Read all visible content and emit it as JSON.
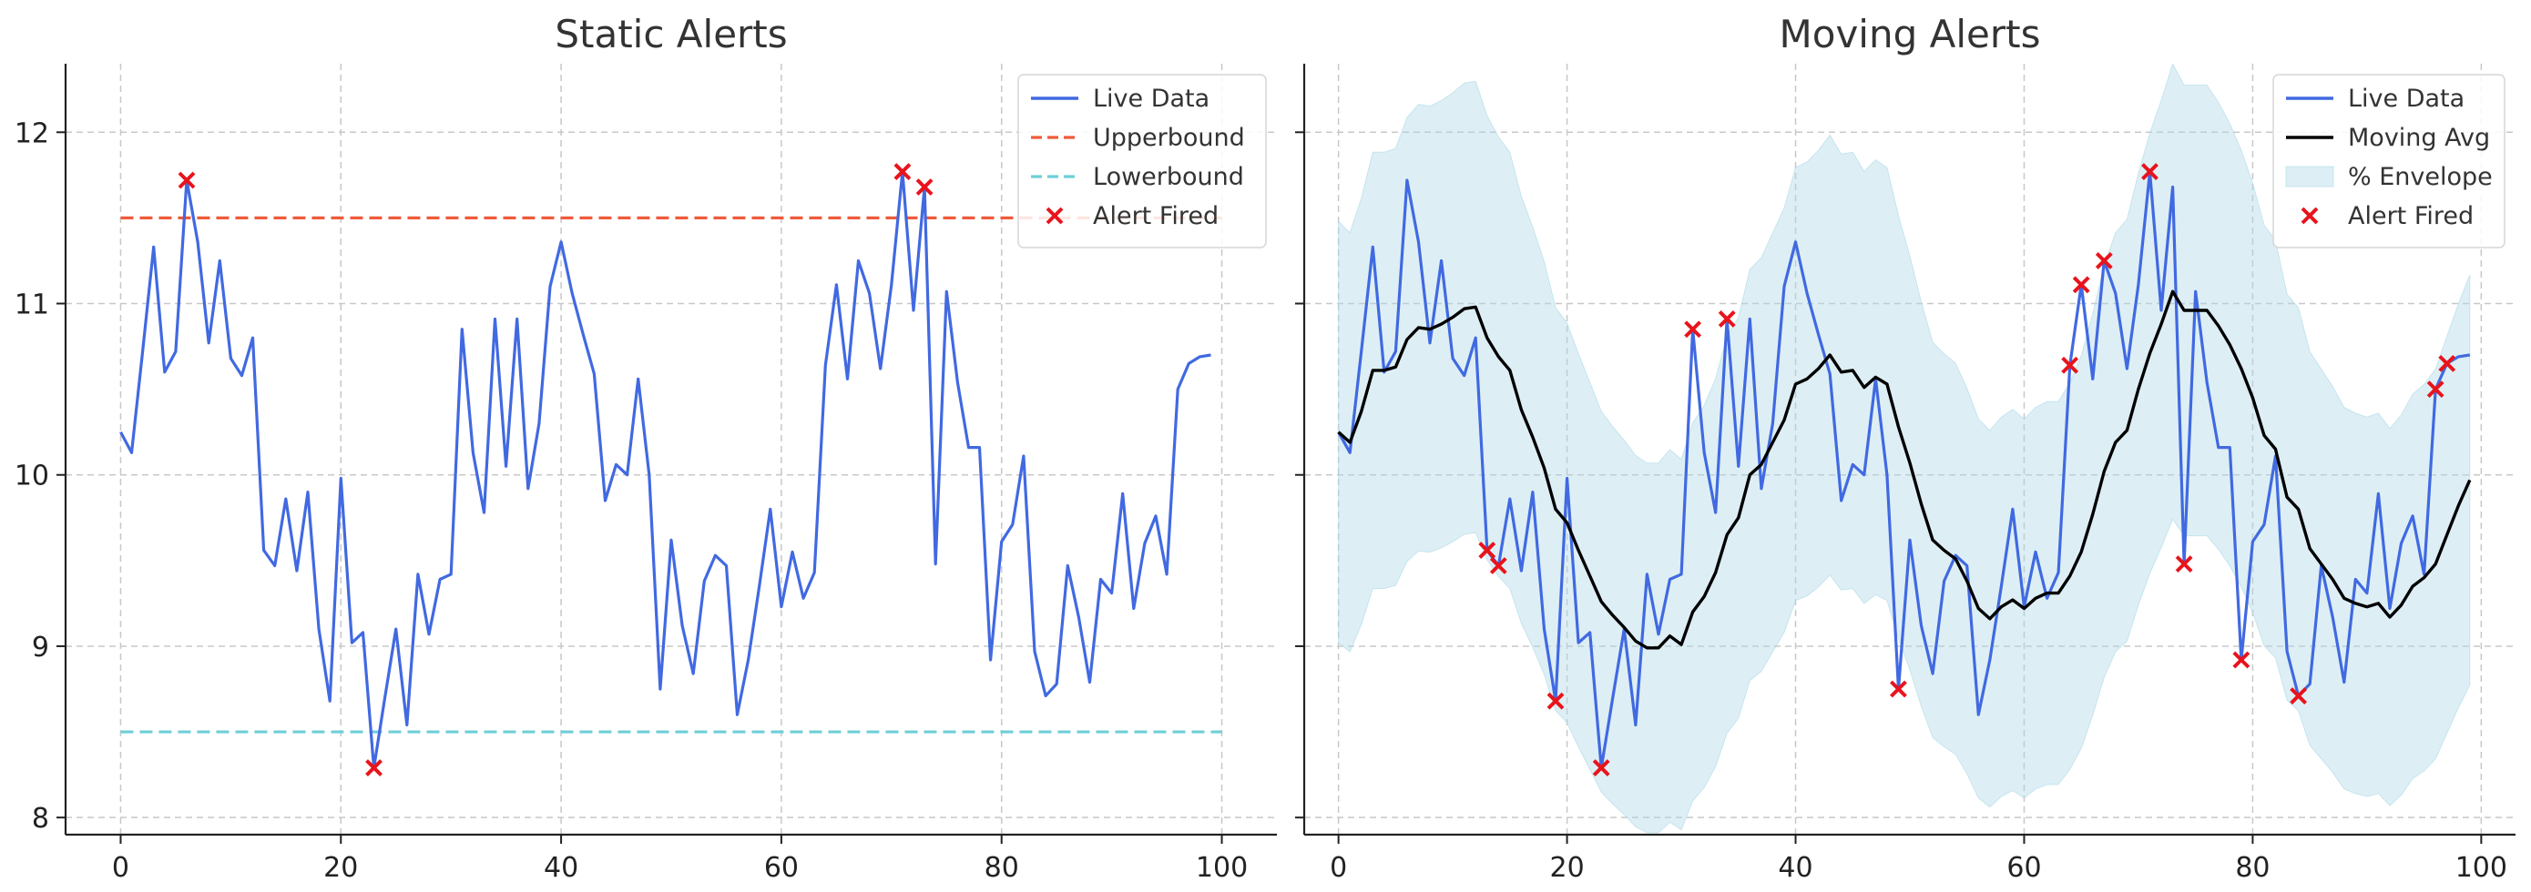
{
  "chart_data": [
    {
      "type": "line",
      "title": "Static Alerts",
      "xlabel": "",
      "ylabel": "",
      "xlim": [
        -5,
        105
      ],
      "ylim": [
        7.9,
        12.4
      ],
      "xticks": [
        0,
        20,
        40,
        60,
        80,
        100
      ],
      "yticks": [
        8,
        9,
        10,
        11,
        12
      ],
      "grid": true,
      "legend_position": "top-right",
      "series": [
        {
          "name": "Live Data",
          "kind": "line",
          "color": "#4169e1",
          "x": [
            0,
            1,
            2,
            3,
            4,
            5,
            6,
            7,
            8,
            9,
            10,
            11,
            12,
            13,
            14,
            15,
            16,
            17,
            18,
            19,
            20,
            21,
            22,
            23,
            24,
            25,
            26,
            27,
            28,
            29,
            30,
            31,
            32,
            33,
            34,
            35,
            36,
            37,
            38,
            39,
            40,
            41,
            42,
            43,
            44,
            45,
            46,
            47,
            48,
            49,
            50,
            51,
            52,
            53,
            54,
            55,
            56,
            57,
            58,
            59,
            60,
            61,
            62,
            63,
            64,
            65,
            66,
            67,
            68,
            69,
            70,
            71,
            72,
            73,
            74,
            75,
            76,
            77,
            78,
            79,
            80,
            81,
            82,
            83,
            84,
            85,
            86,
            87,
            88,
            89,
            90,
            91,
            92,
            93,
            94,
            95,
            96,
            97,
            98,
            99
          ],
          "values": [
            10.25,
            10.13,
            10.72,
            11.33,
            10.6,
            10.72,
            11.72,
            11.36,
            10.77,
            11.25,
            10.68,
            10.58,
            10.8,
            9.56,
            9.47,
            9.86,
            9.44,
            9.9,
            9.1,
            8.68,
            9.98,
            9.02,
            9.08,
            8.29,
            8.7,
            9.1,
            8.54,
            9.42,
            9.07,
            9.39,
            9.42,
            10.85,
            10.13,
            9.78,
            10.91,
            10.05,
            10.91,
            9.92,
            10.3,
            11.1,
            11.36,
            11.06,
            10.82,
            10.59,
            9.85,
            10.06,
            10.0,
            10.56,
            10.0,
            8.75,
            9.62,
            9.12,
            8.84,
            9.38,
            9.53,
            9.47,
            8.6,
            8.92,
            9.35,
            9.8,
            9.23,
            9.55,
            9.28,
            9.43,
            10.64,
            11.11,
            10.56,
            11.25,
            11.06,
            10.62,
            11.11,
            11.77,
            10.96,
            11.68,
            9.48,
            11.07,
            10.54,
            10.16,
            10.16,
            8.92,
            9.61,
            9.71,
            10.11,
            8.97,
            8.71,
            8.78,
            9.47,
            9.17,
            8.79,
            9.39,
            9.31,
            9.89,
            9.22,
            9.6,
            9.76,
            9.42,
            10.5,
            10.65,
            10.69,
            10.7
          ]
        },
        {
          "name": "Upperbound",
          "kind": "hline",
          "color": "#f05a3a",
          "value": 11.5,
          "x_range": [
            0,
            100
          ]
        },
        {
          "name": "Lowerbound",
          "kind": "hline",
          "color": "#6fcfd8",
          "value": 8.5,
          "x_range": [
            0,
            100
          ]
        },
        {
          "name": "Alert Fired",
          "kind": "scatter",
          "color": "#e8141c",
          "x": [
            6,
            23,
            71,
            73
          ],
          "values": [
            11.72,
            8.29,
            11.77,
            11.68
          ]
        }
      ]
    },
    {
      "type": "line",
      "title": "Moving Alerts",
      "xlabel": "",
      "ylabel": "",
      "xlim": [
        -3,
        103
      ],
      "ylim": [
        7.9,
        12.4
      ],
      "xticks": [
        0,
        20,
        40,
        60,
        80,
        100
      ],
      "yticks": [
        8,
        9,
        10,
        11,
        12
      ],
      "grid": true,
      "legend_position": "top-right",
      "series": [
        {
          "name": "Live Data",
          "kind": "line",
          "color": "#4169e1",
          "x": [
            0,
            1,
            2,
            3,
            4,
            5,
            6,
            7,
            8,
            9,
            10,
            11,
            12,
            13,
            14,
            15,
            16,
            17,
            18,
            19,
            20,
            21,
            22,
            23,
            24,
            25,
            26,
            27,
            28,
            29,
            30,
            31,
            32,
            33,
            34,
            35,
            36,
            37,
            38,
            39,
            40,
            41,
            42,
            43,
            44,
            45,
            46,
            47,
            48,
            49,
            50,
            51,
            52,
            53,
            54,
            55,
            56,
            57,
            58,
            59,
            60,
            61,
            62,
            63,
            64,
            65,
            66,
            67,
            68,
            69,
            70,
            71,
            72,
            73,
            74,
            75,
            76,
            77,
            78,
            79,
            80,
            81,
            82,
            83,
            84,
            85,
            86,
            87,
            88,
            89,
            90,
            91,
            92,
            93,
            94,
            95,
            96,
            97,
            98,
            99
          ],
          "values": [
            10.25,
            10.13,
            10.72,
            11.33,
            10.6,
            10.72,
            11.72,
            11.36,
            10.77,
            11.25,
            10.68,
            10.58,
            10.8,
            9.56,
            9.47,
            9.86,
            9.44,
            9.9,
            9.1,
            8.68,
            9.98,
            9.02,
            9.08,
            8.29,
            8.7,
            9.1,
            8.54,
            9.42,
            9.07,
            9.39,
            9.42,
            10.85,
            10.13,
            9.78,
            10.91,
            10.05,
            10.91,
            9.92,
            10.3,
            11.1,
            11.36,
            11.06,
            10.82,
            10.59,
            9.85,
            10.06,
            10.0,
            10.56,
            10.0,
            8.75,
            9.62,
            9.12,
            8.84,
            9.38,
            9.53,
            9.47,
            8.6,
            8.92,
            9.35,
            9.8,
            9.23,
            9.55,
            9.28,
            9.43,
            10.64,
            11.11,
            10.56,
            11.25,
            11.06,
            10.62,
            11.11,
            11.77,
            10.96,
            11.68,
            9.48,
            11.07,
            10.54,
            10.16,
            10.16,
            8.92,
            9.61,
            9.71,
            10.11,
            8.97,
            8.71,
            8.78,
            9.47,
            9.17,
            8.79,
            9.39,
            9.31,
            9.89,
            9.22,
            9.6,
            9.76,
            9.42,
            10.5,
            10.65,
            10.69,
            10.7
          ]
        },
        {
          "name": "Moving Avg",
          "kind": "line",
          "color": "#000000",
          "x": [
            0,
            1,
            2,
            3,
            4,
            5,
            6,
            7,
            8,
            9,
            10,
            11,
            12,
            13,
            14,
            15,
            16,
            17,
            18,
            19,
            20,
            21,
            22,
            23,
            24,
            25,
            26,
            27,
            28,
            29,
            30,
            31,
            32,
            33,
            34,
            35,
            36,
            37,
            38,
            39,
            40,
            41,
            42,
            43,
            44,
            45,
            46,
            47,
            48,
            49,
            50,
            51,
            52,
            53,
            54,
            55,
            56,
            57,
            58,
            59,
            60,
            61,
            62,
            63,
            64,
            65,
            66,
            67,
            68,
            69,
            70,
            71,
            72,
            73,
            74,
            75,
            76,
            77,
            78,
            79,
            80,
            81,
            82,
            83,
            84,
            85,
            86,
            87,
            88,
            89,
            90,
            91,
            92,
            93,
            94,
            95,
            96,
            97,
            98,
            99
          ],
          "values": [
            10.25,
            10.19,
            10.37,
            10.61,
            10.61,
            10.63,
            10.79,
            10.86,
            10.85,
            10.88,
            10.92,
            10.97,
            10.98,
            10.8,
            10.69,
            10.61,
            10.38,
            10.22,
            10.04,
            9.8,
            9.72,
            9.56,
            9.41,
            9.26,
            9.18,
            9.11,
            9.03,
            8.99,
            8.99,
            9.06,
            9.01,
            9.2,
            9.29,
            9.43,
            9.65,
            9.75,
            10.0,
            10.06,
            10.19,
            10.32,
            10.53,
            10.56,
            10.62,
            10.7,
            10.6,
            10.61,
            10.51,
            10.57,
            10.53,
            10.28,
            10.07,
            9.83,
            9.62,
            9.56,
            9.51,
            9.38,
            9.22,
            9.16,
            9.23,
            9.27,
            9.22,
            9.28,
            9.31,
            9.31,
            9.41,
            9.55,
            9.77,
            10.02,
            10.19,
            10.26,
            10.5,
            10.71,
            10.88,
            11.07,
            10.96,
            10.96,
            10.96,
            10.87,
            10.76,
            10.62,
            10.45,
            10.23,
            10.15,
            9.87,
            9.8,
            9.57,
            9.48,
            9.39,
            9.28,
            9.25,
            9.23,
            9.25,
            9.17,
            9.24,
            9.35,
            9.4,
            9.48,
            9.65,
            9.82,
            9.97
          ]
        },
        {
          "name": "% Envelope",
          "kind": "band",
          "color": "#add8e6",
          "pct": 0.12
        },
        {
          "name": "Alert Fired",
          "kind": "scatter",
          "color": "#e8141c",
          "x": [
            13,
            14,
            19,
            23,
            31,
            34,
            49,
            64,
            65,
            67,
            71,
            74,
            79,
            84,
            96,
            97
          ],
          "values": [
            9.56,
            9.47,
            8.68,
            8.29,
            10.85,
            10.91,
            8.75,
            10.64,
            11.11,
            11.25,
            11.77,
            9.48,
            8.92,
            8.71,
            10.5,
            10.65
          ]
        }
      ]
    }
  ]
}
